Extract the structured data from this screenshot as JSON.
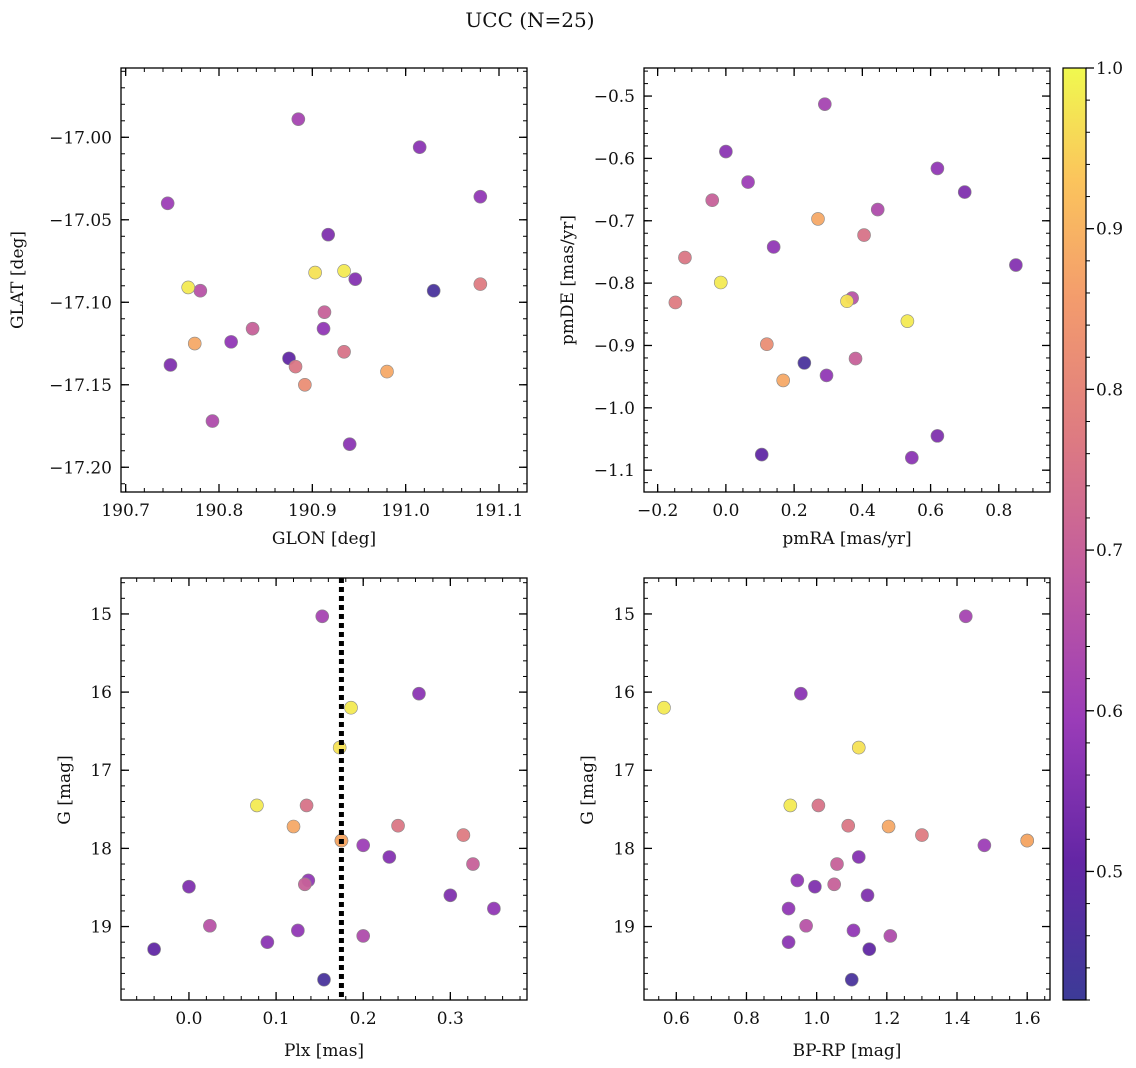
{
  "title": "UCC (N=25)",
  "colorbar": {
    "min": 0.42,
    "max": 1.0,
    "ticks": [
      0.5,
      0.6,
      0.7,
      0.8,
      0.9,
      1.0
    ],
    "tick_labels": [
      "0.5",
      "0.6",
      "0.7",
      "0.8",
      "0.9",
      "1.0"
    ],
    "colormap": "plasma"
  },
  "stars": [
    {
      "glon": 190.885,
      "glat": -16.989,
      "pmra": 0.29,
      "pmde": -0.513,
      "plx": 0.153,
      "g": 15.03,
      "bprp": 1.425,
      "p": 0.62
    },
    {
      "glon": 191.015,
      "glat": -17.006,
      "pmra": 0.0,
      "pmde": -0.589,
      "plx": 0.264,
      "g": 16.02,
      "bprp": 0.955,
      "p": 0.57
    },
    {
      "glon": 190.745,
      "glat": -17.04,
      "pmra": 0.065,
      "pmde": -0.638,
      "plx": 0.2,
      "g": 17.96,
      "bprp": 1.478,
      "p": 0.6
    },
    {
      "glon": 191.08,
      "glat": -17.036,
      "pmra": 0.62,
      "pmde": -0.616,
      "plx": 0.35,
      "g": 18.77,
      "bprp": 0.92,
      "p": 0.58
    },
    {
      "glon": 190.917,
      "glat": -17.059,
      "pmra": 0.7,
      "pmde": -0.654,
      "plx": 0.3,
      "g": 18.6,
      "bprp": 1.145,
      "p": 0.55
    },
    {
      "glon": 190.946,
      "glat": -17.086,
      "pmra": 0.85,
      "pmde": -0.771,
      "plx": 0.23,
      "g": 18.11,
      "bprp": 1.12,
      "p": 0.56
    },
    {
      "glon": 191.03,
      "glat": -17.093,
      "pmra": 0.23,
      "pmde": -0.928,
      "plx": 0.155,
      "g": 19.68,
      "bprp": 1.1,
      "p": 0.45
    },
    {
      "glon": 190.875,
      "glat": -17.134,
      "pmra": 0.105,
      "pmde": -1.075,
      "plx": -0.04,
      "g": 19.29,
      "bprp": 1.15,
      "p": 0.5
    },
    {
      "glon": 190.748,
      "glat": -17.138,
      "pmra": 0.62,
      "pmde": -1.045,
      "plx": 0.0,
      "g": 18.49,
      "bprp": 0.995,
      "p": 0.55
    },
    {
      "glon": 190.94,
      "glat": -17.186,
      "pmra": 0.545,
      "pmde": -1.08,
      "plx": 0.09,
      "g": 19.2,
      "bprp": 0.92,
      "p": 0.57
    },
    {
      "glon": 190.813,
      "glat": -17.124,
      "pmra": 0.295,
      "pmde": -0.948,
      "plx": 0.137,
      "g": 18.41,
      "bprp": 0.945,
      "p": 0.58
    },
    {
      "glon": 190.912,
      "glat": -17.116,
      "pmra": 0.14,
      "pmde": -0.742,
      "plx": 0.125,
      "g": 19.05,
      "bprp": 1.105,
      "p": 0.58
    },
    {
      "glon": 190.793,
      "glat": -17.172,
      "pmra": 0.445,
      "pmde": -0.682,
      "plx": 0.2,
      "g": 19.12,
      "bprp": 1.21,
      "p": 0.64
    },
    {
      "glon": 190.78,
      "glat": -17.093,
      "pmra": 0.37,
      "pmde": -0.824,
      "plx": 0.024,
      "g": 18.99,
      "bprp": 0.97,
      "p": 0.66
    },
    {
      "glon": 190.913,
      "glat": -17.106,
      "pmra": -0.04,
      "pmde": -0.667,
      "plx": 0.133,
      "g": 18.46,
      "bprp": 1.05,
      "p": 0.7
    },
    {
      "glon": 190.836,
      "glat": -17.116,
      "pmra": 0.38,
      "pmde": -0.921,
      "plx": 0.326,
      "g": 18.2,
      "bprp": 1.058,
      "p": 0.7
    },
    {
      "glon": 190.934,
      "glat": -17.13,
      "pmra": 0.405,
      "pmde": -0.723,
      "plx": 0.135,
      "g": 17.45,
      "bprp": 1.005,
      "p": 0.75
    },
    {
      "glon": 190.882,
      "glat": -17.139,
      "pmra": -0.12,
      "pmde": -0.759,
      "plx": 0.24,
      "g": 17.71,
      "bprp": 1.09,
      "p": 0.76
    },
    {
      "glon": 191.08,
      "glat": -17.089,
      "pmra": -0.148,
      "pmde": -0.831,
      "plx": 0.315,
      "g": 17.83,
      "bprp": 1.3,
      "p": 0.77
    },
    {
      "glon": 190.892,
      "glat": -17.15,
      "pmra": 0.12,
      "pmde": -0.898,
      "plx": 0.175,
      "g": 17.9,
      "bprp": 1.6,
      "p": 0.82
    },
    {
      "glon": 190.774,
      "glat": -17.125,
      "pmra": 0.27,
      "pmde": -0.697,
      "plx": 0.12,
      "g": 17.72,
      "bprp": 1.205,
      "p": 0.88
    },
    {
      "glon": 190.98,
      "glat": -17.142,
      "pmra": 0.168,
      "pmde": -0.956,
      "plx": 0.175,
      "g": 17.9,
      "bprp": 1.6,
      "p": 0.88
    },
    {
      "glon": 190.767,
      "glat": -17.091,
      "pmra": -0.015,
      "pmde": -0.799,
      "plx": 0.186,
      "g": 16.2,
      "bprp": 0.565,
      "p": 0.98
    },
    {
      "glon": 190.903,
      "glat": -17.082,
      "pmra": 0.355,
      "pmde": -0.829,
      "plx": 0.173,
      "g": 16.71,
      "bprp": 1.12,
      "p": 0.97
    },
    {
      "glon": 190.934,
      "glat": -17.081,
      "pmra": 0.532,
      "pmde": -0.861,
      "plx": 0.078,
      "g": 17.45,
      "bprp": 0.925,
      "p": 0.98
    }
  ],
  "chart_data": [
    {
      "type": "scatter",
      "xkey": "glon",
      "ykey": "glat",
      "xlabel": "GLON [deg]",
      "ylabel": "GLAT [deg]",
      "xlim": [
        190.695,
        191.13
      ],
      "ylim": [
        -17.215,
        -16.958
      ],
      "invert_y": false,
      "xticks": [
        190.7,
        190.8,
        190.9,
        191.0,
        191.1
      ],
      "xtick_labels": [
        "190.7",
        "190.8",
        "190.9",
        "191.0",
        "191.1"
      ],
      "yticks": [
        -17.2,
        -17.15,
        -17.1,
        -17.05,
        -17.0
      ],
      "ytick_labels": [
        "−17.20",
        "−17.15",
        "−17.10",
        "−17.05",
        "−17.00"
      ],
      "xminor": 0.02,
      "yminor": 0.01
    },
    {
      "type": "scatter",
      "xkey": "pmra",
      "ykey": "pmde",
      "xlabel": "pmRA [mas/yr]",
      "ylabel": "pmDE [mas/yr]",
      "xlim": [
        -0.24,
        0.95
      ],
      "ylim": [
        -1.135,
        -0.455
      ],
      "invert_y": false,
      "xticks": [
        -0.2,
        0.0,
        0.2,
        0.4,
        0.6,
        0.8
      ],
      "xtick_labels": [
        "−0.2",
        "0.0",
        "0.2",
        "0.4",
        "0.6",
        "0.8"
      ],
      "yticks": [
        -1.1,
        -1.0,
        -0.9,
        -0.8,
        -0.7,
        -0.6,
        -0.5
      ],
      "ytick_labels": [
        "−1.1",
        "−1.0",
        "−0.9",
        "−0.8",
        "−0.7",
        "−0.6",
        "−0.5"
      ],
      "xminor": 0.05,
      "yminor": 0.02
    },
    {
      "type": "scatter",
      "xkey": "plx",
      "ykey": "g",
      "xlabel": "Plx [mas]",
      "ylabel": "G [mag]",
      "xlim": [
        -0.078,
        0.388
      ],
      "ylim": [
        14.54,
        19.94
      ],
      "invert_y": true,
      "xticks": [
        0.0,
        0.1,
        0.2,
        0.3
      ],
      "xtick_labels": [
        "0.0",
        "0.1",
        "0.2",
        "0.3"
      ],
      "yticks": [
        15,
        16,
        17,
        18,
        19
      ],
      "ytick_labels": [
        "15",
        "16",
        "17",
        "18",
        "19"
      ],
      "xminor": 0.02,
      "yminor": 0.2,
      "vline": 0.175
    },
    {
      "type": "scatter",
      "xkey": "bprp",
      "ykey": "g",
      "xlabel": "BP-RP [mag]",
      "ylabel": "G [mag]",
      "xlim": [
        0.508,
        1.665
      ],
      "ylim": [
        14.54,
        19.94
      ],
      "invert_y": true,
      "xticks": [
        0.6,
        0.8,
        1.0,
        1.2,
        1.4,
        1.6
      ],
      "xtick_labels": [
        "0.6",
        "0.8",
        "1.0",
        "1.2",
        "1.4",
        "1.6"
      ],
      "yticks": [
        15,
        16,
        17,
        18,
        19
      ],
      "ytick_labels": [
        "15",
        "16",
        "17",
        "18",
        "19"
      ],
      "xminor": 0.05,
      "yminor": 0.2
    }
  ]
}
